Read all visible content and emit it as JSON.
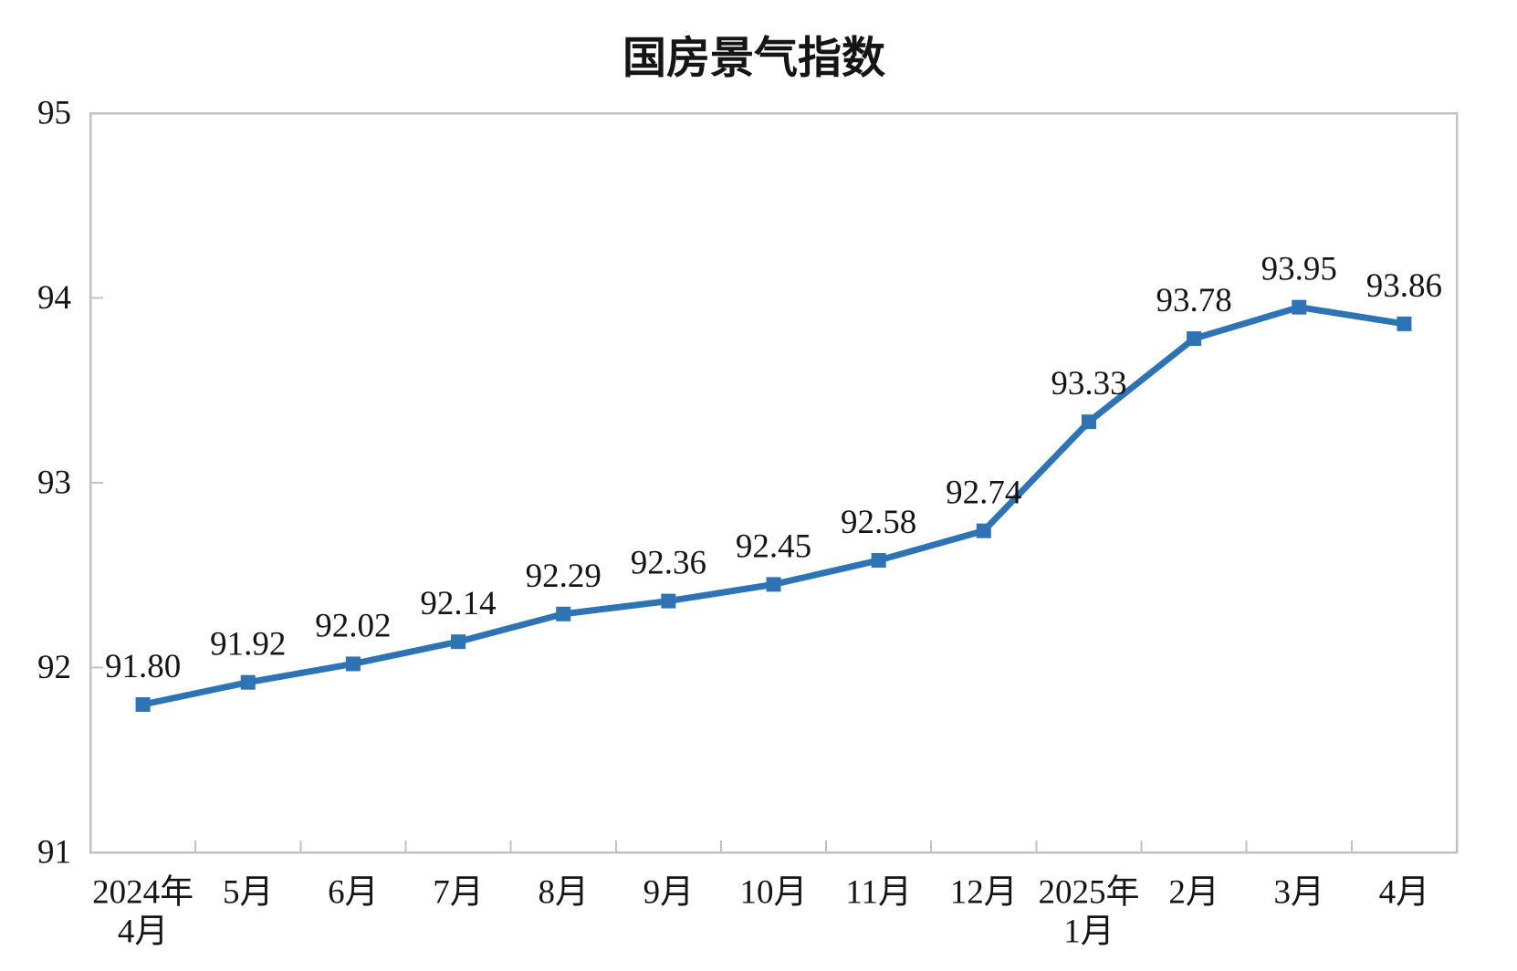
{
  "chart_data": {
    "type": "line",
    "title": "国房景气指数",
    "series_name": "国房景气指数",
    "categories": [
      [
        "2024年",
        "4月"
      ],
      [
        "5月"
      ],
      [
        "6月"
      ],
      [
        "7月"
      ],
      [
        "8月"
      ],
      [
        "9月"
      ],
      [
        "10月"
      ],
      [
        "11月"
      ],
      [
        "12月"
      ],
      [
        "2025年",
        "1月"
      ],
      [
        "2月"
      ],
      [
        "3月"
      ],
      [
        "4月"
      ]
    ],
    "values": [
      91.8,
      91.92,
      92.02,
      92.14,
      92.29,
      92.36,
      92.45,
      92.58,
      92.74,
      93.33,
      93.78,
      93.95,
      93.86
    ],
    "data_labels": [
      "91.80",
      "91.92",
      "92.02",
      "92.14",
      "92.29",
      "92.36",
      "92.45",
      "92.58",
      "92.74",
      "93.33",
      "93.78",
      "93.95",
      "93.86"
    ],
    "xlabel": "",
    "ylabel": "",
    "ylim": [
      91,
      95
    ],
    "yticks": [
      91,
      92,
      93,
      94,
      95
    ],
    "grid": false,
    "legend_position": "none",
    "marker": "square",
    "colors": {
      "line": "#2E74B5",
      "marker": "#2E74B5",
      "axis": "#C2C2C2",
      "text": "#151515",
      "background": "#FFFFFF"
    }
  }
}
